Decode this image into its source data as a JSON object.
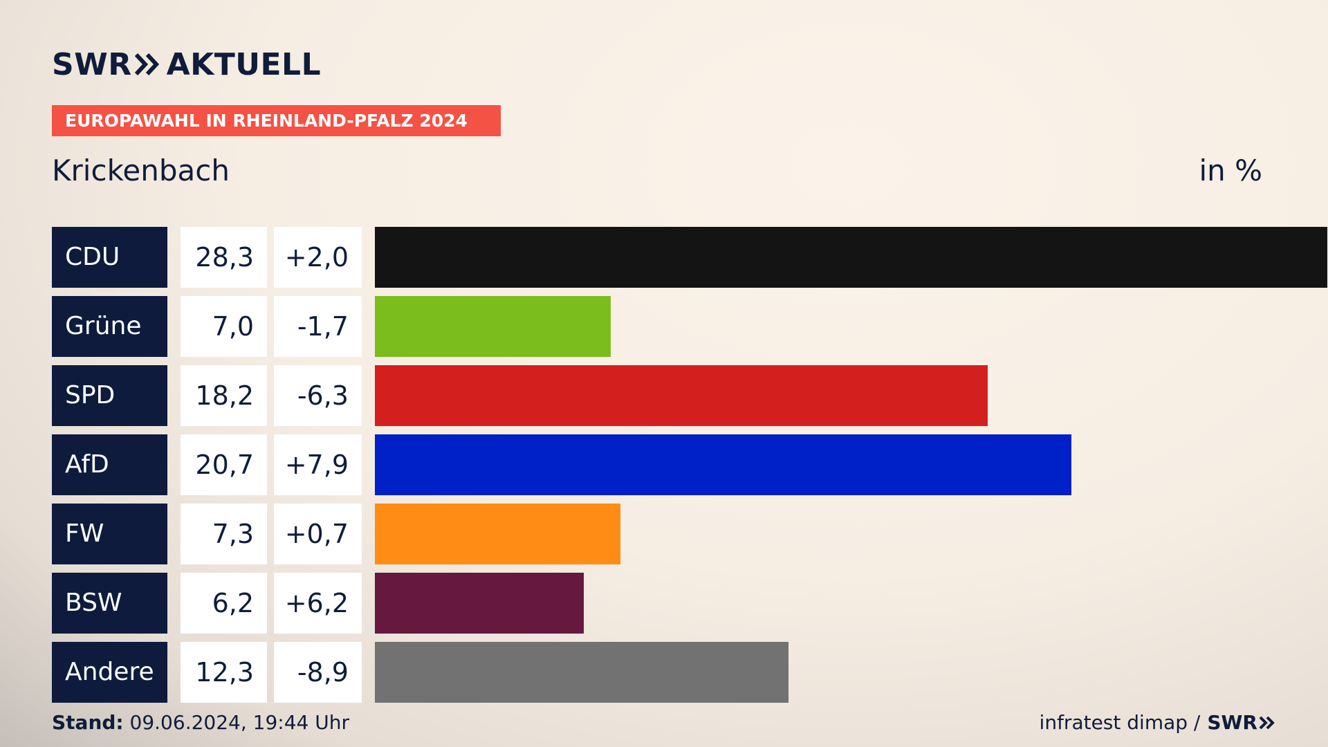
{
  "header": {
    "logo_word": "SWR",
    "logo_section": "AKTUELL",
    "badge": "EUROPAWAHL IN RHEINLAND-PFALZ 2024",
    "place": "Krickenbach",
    "unit": "in %"
  },
  "chart_data": {
    "type": "bar",
    "orientation": "horizontal",
    "categories": [
      "CDU",
      "Grüne",
      "SPD",
      "AfD",
      "FW",
      "BSW",
      "Andere"
    ],
    "values": [
      28.3,
      7.0,
      18.2,
      20.7,
      7.3,
      6.2,
      12.3
    ],
    "value_labels": [
      "28,3",
      "7,0",
      "18,2",
      "20,7",
      "7,3",
      "6,2",
      "12,3"
    ],
    "diff_labels": [
      "+2,0",
      "-1,7",
      "-6,3",
      "+7,9",
      "+0,7",
      "+6,2",
      "-8,9"
    ],
    "colors": [
      "#141414",
      "#7bbd1c",
      "#d41f1f",
      "#0020c8",
      "#ff8c14",
      "#66183f",
      "#727272"
    ],
    "unit": "in %"
  },
  "footer": {
    "stand_label": "Stand:",
    "stand_value": "09.06.2024, 19:44 Uhr",
    "source": "infratest dimap /",
    "brand": "SWR"
  }
}
